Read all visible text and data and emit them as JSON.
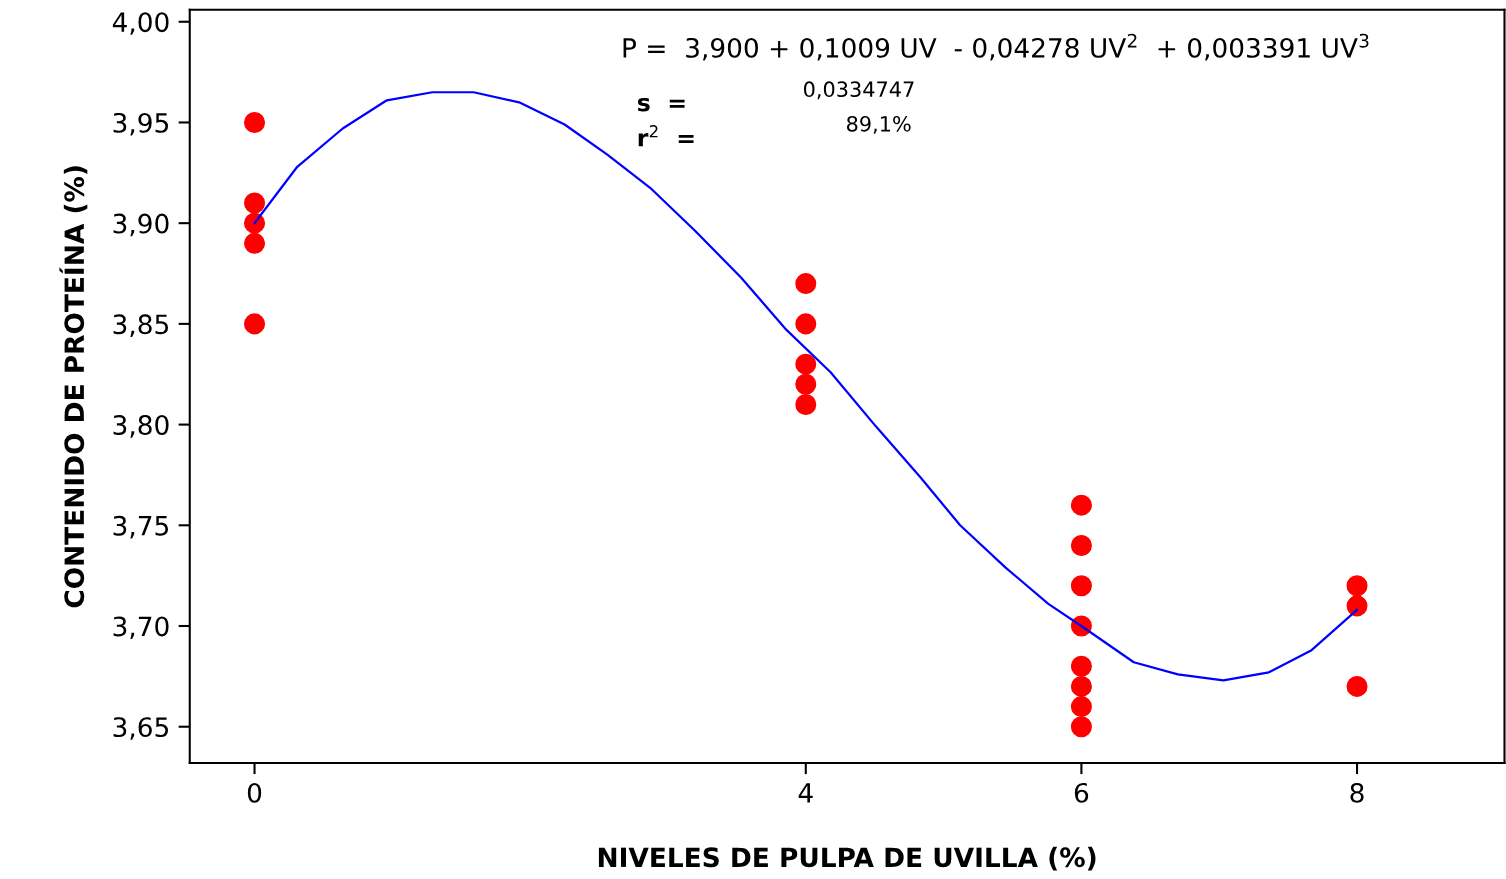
{
  "chart_data": {
    "type": "scatter",
    "xlabel": "NIVELES DE PULPA DE UVILLA (%)",
    "ylabel": "CONTENIDO DE PROTEÍNA (%)",
    "annotations": [
      "P =  3,900 + 0,1009 UV  - 0,04278 UV$^{2}$  + 0,003391 UV$^{3}$",
      "s  =",
      "r$^{2}$  =",
      "0,0334747",
      "89,1%"
    ],
    "xlim": [
      -0.47,
      9.07
    ],
    "ylim": [
      3.632,
      4.006
    ],
    "xticks": [
      0,
      4,
      6,
      8
    ],
    "yticks": [
      {
        "value": 3.65,
        "label": "3,65"
      },
      {
        "value": 3.7,
        "label": "3,70"
      },
      {
        "value": 3.75,
        "label": "3,75"
      },
      {
        "value": 3.8,
        "label": "3,80"
      },
      {
        "value": 3.85,
        "label": "3,85"
      },
      {
        "value": 3.9,
        "label": "3,90"
      },
      {
        "value": 3.95,
        "label": "3,95"
      },
      {
        "value": 4.0,
        "label": "4,00"
      }
    ],
    "grid": false,
    "legend": false,
    "marker": "circle",
    "series": [
      {
        "color": "#ff0000",
        "x": [
          0,
          0,
          0,
          0,
          0,
          4,
          4,
          4,
          4,
          4,
          6,
          6,
          6,
          6,
          6,
          6,
          6,
          6,
          8,
          8,
          8
        ],
        "values": [
          3.95,
          3.91,
          3.9,
          3.89,
          3.85,
          3.87,
          3.85,
          3.83,
          3.82,
          3.81,
          3.76,
          3.74,
          3.72,
          3.7,
          3.68,
          3.67,
          3.66,
          3.65,
          3.72,
          3.71,
          3.67
        ]
      },
      {
        "type": "line",
        "color": "#0000ff",
        "line_style": "solid",
        "marker": "none",
        "x": [
          0,
          0.31,
          0.64,
          0.96,
          1.29,
          1.59,
          1.92,
          2.25,
          2.56,
          2.88,
          3.2,
          3.53,
          3.86,
          4.18,
          4.51,
          4.83,
          5.12,
          5.45,
          5.76,
          6.0,
          6.38,
          6.7,
          7.03,
          7.36,
          7.67,
          8.0
        ],
        "values": [
          3.9,
          3.928,
          3.947,
          3.961,
          3.965,
          3.965,
          3.96,
          3.949,
          3.934,
          3.917,
          3.896,
          3.873,
          3.847,
          3.826,
          3.799,
          3.774,
          3.75,
          3.729,
          3.711,
          3.7,
          3.682,
          3.676,
          3.673,
          3.677,
          3.688,
          3.708
        ]
      }
    ]
  }
}
